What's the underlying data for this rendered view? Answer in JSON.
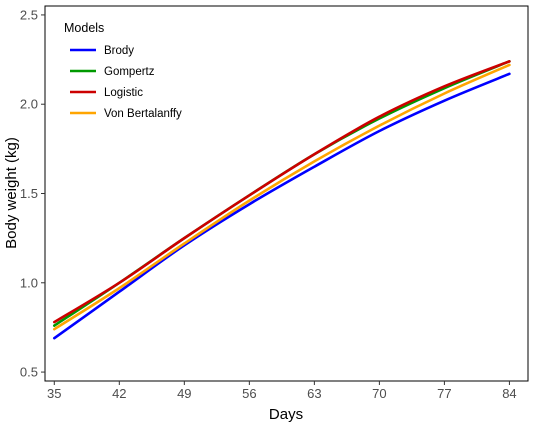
{
  "chart_data": {
    "type": "line",
    "xlabel": "Days",
    "ylabel": "Body weight (kg)",
    "xlim": [
      34,
      86
    ],
    "ylim": [
      0.45,
      2.55
    ],
    "x_ticks": [
      35,
      42,
      49,
      56,
      63,
      70,
      77,
      84
    ],
    "y_ticks": [
      0.5,
      1.0,
      1.5,
      2.0,
      2.5
    ],
    "y_tick_labels": [
      "0.5",
      "1.0",
      "1.5",
      "2.0",
      "2.5"
    ],
    "grid": false,
    "legend": {
      "title": "Models",
      "position": "top-left"
    },
    "x": [
      35,
      42,
      49,
      56,
      63,
      70,
      77,
      84
    ],
    "series": [
      {
        "name": "Brody",
        "color": "#0000ff",
        "values": [
          0.69,
          0.95,
          1.21,
          1.44,
          1.65,
          1.85,
          2.02,
          2.17
        ]
      },
      {
        "name": "Gompertz",
        "color": "#009900",
        "values": [
          0.76,
          1.0,
          1.25,
          1.49,
          1.72,
          1.92,
          2.09,
          2.24
        ]
      },
      {
        "name": "Logistic",
        "color": "#cc0000",
        "values": [
          0.78,
          1.0,
          1.25,
          1.49,
          1.72,
          1.93,
          2.1,
          2.24
        ]
      },
      {
        "name": "Von Bertalanffy",
        "color": "#ffa500",
        "values": [
          0.74,
          0.97,
          1.22,
          1.46,
          1.68,
          1.88,
          2.06,
          2.22
        ]
      }
    ]
  }
}
